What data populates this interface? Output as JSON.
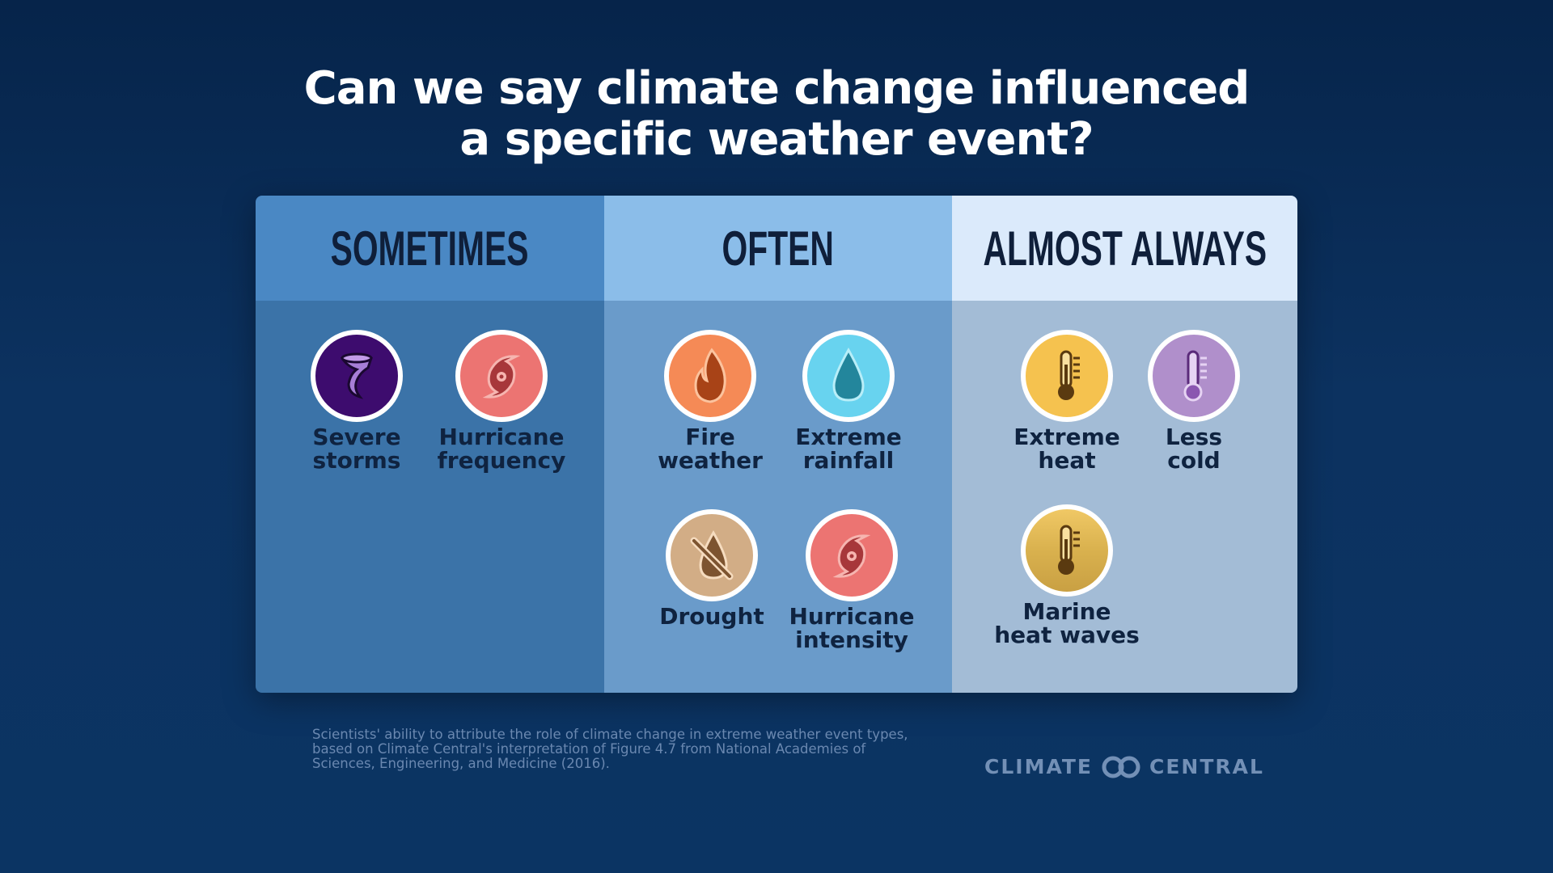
{
  "title": {
    "line1": "Can we say climate change influenced",
    "line2": "a specific weather event?"
  },
  "columns": [
    {
      "heading": "SOMETIMES",
      "items": [
        {
          "icon": "tornado-icon",
          "label1": "Severe",
          "label2": "storms"
        },
        {
          "icon": "hurricane-icon",
          "label1": "Hurricane",
          "label2": "frequency"
        }
      ]
    },
    {
      "heading": "OFTEN",
      "items": [
        {
          "icon": "fire-icon",
          "label1": "Fire",
          "label2": "weather"
        },
        {
          "icon": "raindrop-icon",
          "label1": "Extreme",
          "label2": "rainfall"
        },
        {
          "icon": "drought-icon",
          "label1": "Drought",
          "label2": ""
        },
        {
          "icon": "hurricane-icon",
          "label1": "Hurricane",
          "label2": "intensity"
        }
      ]
    },
    {
      "heading": "ALMOST ALWAYS",
      "items": [
        {
          "icon": "thermometer-hot-icon",
          "label1": "Extreme",
          "label2": "heat"
        },
        {
          "icon": "thermometer-cold-icon",
          "label1": "Less",
          "label2": "cold"
        },
        {
          "icon": "thermometer-ocean-icon",
          "label1": "Marine",
          "label2": "heat waves"
        }
      ]
    }
  ],
  "footnote": {
    "line1": "Scientists' ability to attribute the role of climate change in extreme weather event types,",
    "line2": "based on Climate Central's interpretation of Figure 4.7 from National Academies of",
    "line3": "Sciences, Engineering, and Medicine (2016)."
  },
  "logo": {
    "left": "CLIMATE",
    "right": "CENTRAL"
  }
}
